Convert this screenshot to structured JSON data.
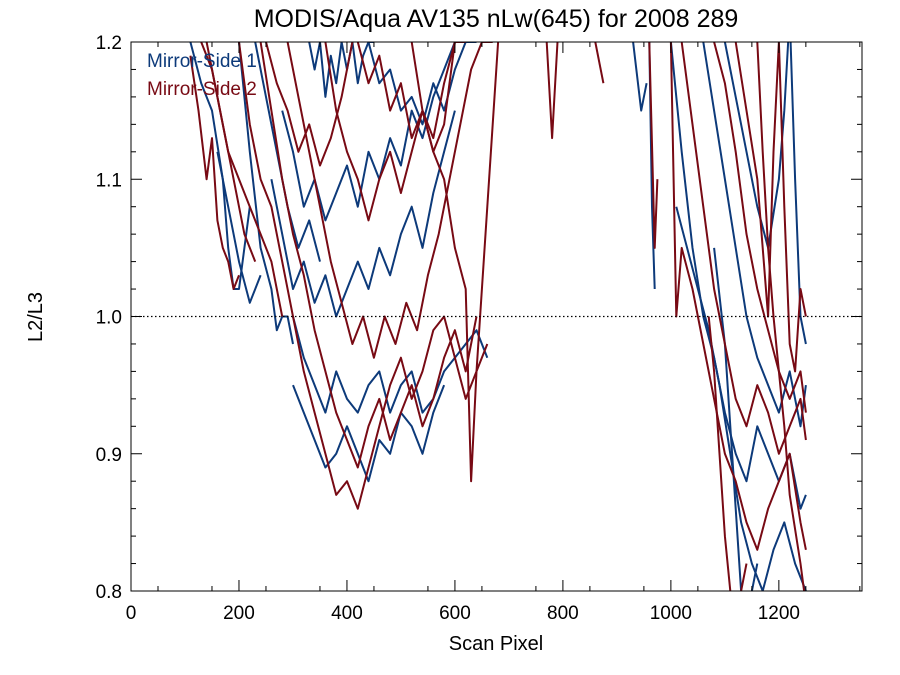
{
  "chart_data": {
    "type": "line",
    "title": "MODIS/Aqua AV135 nLw(645) for 2008 289",
    "xlabel": "Scan Pixel",
    "ylabel": "L2/L3",
    "xlim": [
      0,
      1354
    ],
    "ylim": [
      0.8,
      1.2
    ],
    "x_ticks": [
      0,
      200,
      400,
      600,
      800,
      1000,
      1200
    ],
    "y_ticks": [
      0.8,
      0.9,
      1.0,
      1.1,
      1.2
    ],
    "x_tick_labels": [
      "0",
      "200",
      "400",
      "600",
      "800",
      "1000",
      "1200"
    ],
    "y_tick_labels": [
      "0.8",
      "0.9",
      "1.0",
      "1.1",
      "1.2"
    ],
    "reference_line": 1.0,
    "grid": false,
    "legend_position": "top-left",
    "legend": [
      {
        "label": "Mirror-Side 1",
        "color": "#0d3a7a"
      },
      {
        "label": "Mirror-Side 2",
        "color": "#780a14"
      }
    ],
    "series": [
      {
        "group": 0,
        "x": [
          110,
          130,
          150,
          170,
          180,
          190,
          200,
          210,
          220
        ],
        "y": [
          1.2,
          1.17,
          1.15,
          1.1,
          1.05,
          1.02,
          1.02,
          1.05,
          1.08
        ]
      },
      {
        "group": 0,
        "x": [
          200,
          220,
          240,
          260,
          270,
          280,
          290,
          300
        ],
        "y": [
          1.2,
          1.12,
          1.05,
          1.02,
          0.99,
          1.0,
          1.0,
          0.98
        ]
      },
      {
        "group": 0,
        "x": [
          300,
          320,
          340,
          360,
          380,
          400,
          420,
          440,
          460,
          480,
          500,
          520,
          540,
          560,
          580,
          600,
          620,
          640,
          660
        ],
        "y": [
          1.0,
          0.97,
          0.95,
          0.93,
          0.96,
          0.94,
          0.93,
          0.95,
          0.96,
          0.93,
          0.95,
          0.96,
          0.93,
          0.94,
          0.96,
          0.97,
          0.98,
          0.99,
          0.97
        ]
      },
      {
        "group": 0,
        "x": [
          300,
          320,
          340,
          360,
          380,
          400,
          420,
          440,
          460,
          480,
          500,
          520,
          540,
          560,
          580
        ],
        "y": [
          0.95,
          0.93,
          0.91,
          0.89,
          0.9,
          0.92,
          0.9,
          0.88,
          0.91,
          0.9,
          0.93,
          0.92,
          0.9,
          0.93,
          0.95
        ]
      },
      {
        "group": 0,
        "x": [
          260,
          280,
          300,
          320,
          340,
          360,
          380,
          400,
          420,
          440,
          460,
          480,
          500,
          520,
          540,
          560,
          580,
          600
        ],
        "y": [
          1.1,
          1.06,
          1.02,
          1.04,
          1.01,
          1.03,
          1.0,
          1.02,
          1.04,
          1.02,
          1.05,
          1.03,
          1.06,
          1.08,
          1.05,
          1.09,
          1.12,
          1.15
        ]
      },
      {
        "group": 0,
        "x": [
          280,
          300,
          320,
          340,
          360,
          380,
          400,
          420,
          440,
          460,
          480,
          500,
          520,
          540,
          560,
          580,
          600
        ],
        "y": [
          1.15,
          1.12,
          1.08,
          1.1,
          1.07,
          1.09,
          1.11,
          1.08,
          1.12,
          1.1,
          1.13,
          1.11,
          1.15,
          1.13,
          1.16,
          1.18,
          1.2
        ]
      },
      {
        "group": 0,
        "x": [
          440,
          460,
          480,
          500,
          520,
          540,
          560,
          580,
          600,
          620,
          640
        ],
        "y": [
          1.2,
          1.17,
          1.18,
          1.15,
          1.16,
          1.14,
          1.17,
          1.15,
          1.18,
          1.2,
          1.2
        ]
      },
      {
        "group": 0,
        "x": [
          330,
          340,
          350,
          360,
          370,
          380,
          390,
          400,
          410,
          420,
          430,
          440,
          450
        ],
        "y": [
          1.2,
          1.18,
          1.2,
          1.16,
          1.19,
          1.17,
          1.2,
          1.18,
          1.2,
          1.17,
          1.19,
          1.2,
          1.2
        ]
      },
      {
        "group": 0,
        "x": [
          230,
          250,
          270,
          290,
          310,
          330,
          350
        ],
        "y": [
          1.2,
          1.16,
          1.12,
          1.08,
          1.05,
          1.07,
          1.04
        ]
      },
      {
        "group": 0,
        "x": [
          160,
          180,
          200,
          220,
          240
        ],
        "y": [
          1.12,
          1.08,
          1.04,
          1.01,
          1.03
        ]
      },
      {
        "group": 0,
        "x": [
          960,
          965,
          970
        ],
        "y": [
          1.2,
          1.08,
          1.02
        ]
      },
      {
        "group": 0,
        "x": [
          930,
          945,
          955
        ],
        "y": [
          1.2,
          1.15,
          1.17
        ]
      },
      {
        "group": 0,
        "x": [
          1000,
          1020,
          1040,
          1060,
          1080,
          1100,
          1120,
          1140,
          1160,
          1180,
          1200,
          1220,
          1240,
          1250
        ],
        "y": [
          1.2,
          1.12,
          1.05,
          1.0,
          0.97,
          0.93,
          0.9,
          0.88,
          0.92,
          0.9,
          0.88,
          0.9,
          0.86,
          0.87
        ]
      },
      {
        "group": 0,
        "x": [
          1010,
          1030,
          1050,
          1070,
          1090,
          1110,
          1130,
          1150,
          1170,
          1190,
          1210,
          1230,
          1250
        ],
        "y": [
          1.08,
          1.05,
          1.02,
          0.99,
          0.95,
          0.9,
          0.85,
          0.82,
          0.8,
          0.83,
          0.85,
          0.82,
          0.8
        ]
      },
      {
        "group": 0,
        "x": [
          1060,
          1080,
          1100,
          1120,
          1140,
          1160,
          1180,
          1200,
          1220,
          1240,
          1250
        ],
        "y": [
          1.2,
          1.15,
          1.1,
          1.05,
          1.0,
          0.97,
          0.95,
          0.93,
          0.96,
          0.92,
          0.95
        ]
      },
      {
        "group": 0,
        "x": [
          1100,
          1120,
          1140,
          1160,
          1180,
          1200,
          1210,
          1220,
          1230,
          1240,
          1250
        ],
        "y": [
          1.2,
          1.16,
          1.12,
          1.08,
          1.05,
          1.1,
          1.15,
          1.22,
          1.1,
          1.0,
          0.98
        ]
      },
      {
        "group": 0,
        "x": [
          1080,
          1100,
          1110,
          1120,
          1130,
          1140,
          1150,
          1160
        ],
        "y": [
          1.05,
          0.98,
          0.92,
          0.86,
          0.8,
          0.78,
          0.8,
          0.82
        ]
      },
      {
        "group": 1,
        "x": [
          110,
          125,
          140,
          150,
          160,
          170,
          180,
          190,
          200
        ],
        "y": [
          1.19,
          1.15,
          1.1,
          1.13,
          1.07,
          1.05,
          1.04,
          1.02,
          1.03
        ]
      },
      {
        "group": 1,
        "x": [
          140,
          160,
          180,
          200,
          220,
          240,
          260,
          280
        ],
        "y": [
          1.2,
          1.16,
          1.12,
          1.1,
          1.08,
          1.06,
          1.04,
          1.0
        ]
      },
      {
        "group": 1,
        "x": [
          200,
          220,
          240,
          260,
          280,
          300,
          320,
          340,
          360,
          380,
          400,
          420,
          440,
          460,
          480,
          500,
          520,
          540,
          560,
          580,
          600,
          620,
          640,
          660
        ],
        "y": [
          1.2,
          1.14,
          1.1,
          1.08,
          1.04,
          1.0,
          0.96,
          0.93,
          0.9,
          0.87,
          0.88,
          0.86,
          0.89,
          0.92,
          0.95,
          0.97,
          0.94,
          0.96,
          0.99,
          1.0,
          0.97,
          0.94,
          0.96,
          0.98
        ]
      },
      {
        "group": 1,
        "x": [
          240,
          260,
          280,
          300,
          320,
          340,
          360,
          380,
          400,
          420,
          440,
          460,
          480,
          500,
          520,
          540,
          560,
          580,
          600,
          620,
          640
        ],
        "y": [
          1.2,
          1.15,
          1.1,
          1.06,
          1.03,
          0.99,
          0.96,
          0.93,
          0.91,
          0.89,
          0.92,
          0.94,
          0.91,
          0.93,
          0.95,
          0.92,
          0.94,
          0.97,
          0.99,
          0.96,
          1.0
        ]
      },
      {
        "group": 1,
        "x": [
          290,
          310,
          330,
          350,
          370,
          390,
          410,
          430,
          450,
          470,
          490,
          510,
          530,
          550,
          570,
          590,
          610,
          630,
          650,
          670
        ],
        "y": [
          1.2,
          1.16,
          1.12,
          1.08,
          1.04,
          1.01,
          0.98,
          1.0,
          0.97,
          1.0,
          0.98,
          1.01,
          0.99,
          1.03,
          1.06,
          1.1,
          1.14,
          1.18,
          1.2,
          1.2
        ]
      },
      {
        "group": 1,
        "x": [
          360,
          380,
          400,
          420,
          440,
          460,
          480,
          500,
          520,
          540,
          560,
          580,
          600,
          620
        ],
        "y": [
          1.2,
          1.15,
          1.12,
          1.1,
          1.07,
          1.1,
          1.12,
          1.09,
          1.12,
          1.15,
          1.13,
          1.17,
          1.2,
          1.2
        ]
      },
      {
        "group": 1,
        "x": [
          520,
          540,
          560,
          580,
          600,
          620,
          630,
          640,
          660,
          680
        ],
        "y": [
          1.2,
          1.15,
          1.12,
          1.1,
          1.05,
          1.02,
          0.88,
          0.96,
          1.08,
          1.2
        ]
      },
      {
        "group": 1,
        "x": [
          420,
          440,
          460,
          480,
          500,
          520,
          540,
          560,
          580,
          600
        ],
        "y": [
          1.2,
          1.17,
          1.19,
          1.15,
          1.17,
          1.13,
          1.15,
          1.12,
          1.14,
          1.2
        ]
      },
      {
        "group": 1,
        "x": [
          250,
          270,
          290,
          310,
          330,
          350,
          370,
          390,
          410
        ],
        "y": [
          1.2,
          1.17,
          1.15,
          1.12,
          1.14,
          1.11,
          1.13,
          1.16,
          1.2
        ]
      },
      {
        "group": 1,
        "x": [
          130,
          150,
          170,
          190,
          210,
          230
        ],
        "y": [
          1.2,
          1.18,
          1.14,
          1.1,
          1.06,
          1.04
        ]
      },
      {
        "group": 1,
        "x": [
          770,
          780,
          790
        ],
        "y": [
          1.2,
          1.13,
          1.2
        ]
      },
      {
        "group": 1,
        "x": [
          860,
          875
        ],
        "y": [
          1.2,
          1.17
        ]
      },
      {
        "group": 1,
        "x": [
          960,
          970,
          975
        ],
        "y": [
          1.2,
          1.05,
          1.1
        ]
      },
      {
        "group": 1,
        "x": [
          1000,
          1010,
          1020,
          1040,
          1060,
          1080,
          1100,
          1120,
          1140,
          1160,
          1180,
          1200,
          1220,
          1240,
          1250
        ],
        "y": [
          1.2,
          1.0,
          1.05,
          1.02,
          0.98,
          0.94,
          0.9,
          0.88,
          0.85,
          0.83,
          0.86,
          0.88,
          0.9,
          0.85,
          0.83
        ]
      },
      {
        "group": 1,
        "x": [
          1020,
          1040,
          1060,
          1080,
          1100,
          1120,
          1140,
          1160,
          1180,
          1200,
          1220,
          1240,
          1250
        ],
        "y": [
          1.2,
          1.14,
          1.08,
          1.02,
          0.98,
          0.94,
          0.92,
          0.95,
          0.93,
          0.9,
          0.92,
          0.94,
          0.91
        ]
      },
      {
        "group": 1,
        "x": [
          1080,
          1100,
          1120,
          1140,
          1160,
          1180,
          1200,
          1220,
          1240,
          1250
        ],
        "y": [
          1.2,
          1.17,
          1.12,
          1.06,
          1.02,
          0.99,
          0.96,
          0.94,
          0.96,
          0.93
        ]
      },
      {
        "group": 1,
        "x": [
          1120,
          1140,
          1160,
          1170,
          1180,
          1190,
          1200,
          1210,
          1220,
          1230,
          1240,
          1250
        ],
        "y": [
          1.2,
          1.15,
          1.1,
          1.05,
          1.0,
          1.12,
          1.2,
          1.08,
          0.98,
          0.96,
          1.02,
          1.0
        ]
      },
      {
        "group": 1,
        "x": [
          1070,
          1080,
          1090,
          1100,
          1110,
          1120,
          1130,
          1140
        ],
        "y": [
          1.0,
          0.96,
          0.9,
          0.84,
          0.8,
          0.78,
          0.8,
          0.82
        ]
      },
      {
        "group": 1,
        "x": [
          1160,
          1170,
          1180,
          1190,
          1200,
          1210,
          1220,
          1240,
          1250
        ],
        "y": [
          1.2,
          1.12,
          1.05,
          1.0,
          0.96,
          0.92,
          0.87,
          0.82,
          0.79
        ]
      }
    ]
  }
}
